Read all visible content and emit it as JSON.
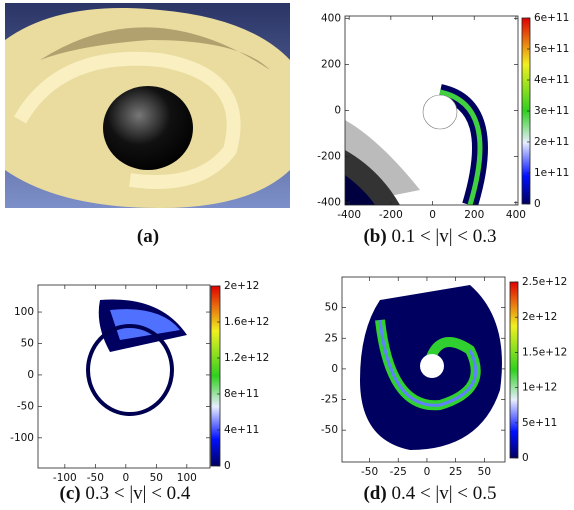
{
  "panels": [
    {
      "label": "(a)"
    },
    {
      "label": "(b)",
      "caption": "0.1 < |v| < 0.3",
      "xlim": [
        -420,
        410
      ],
      "ylim": [
        -410,
        410
      ],
      "xticks": [
        -400,
        -200,
        0,
        200,
        400
      ],
      "yticks": [
        400,
        200,
        0,
        -200,
        -400
      ],
      "clim": [
        0,
        600000000000
      ],
      "cticks": [
        0,
        {
          "value": 100000000000,
          "label": "1e+11"
        },
        {
          "value": 200000000000,
          "label": "2e+11"
        },
        {
          "value": 300000000000,
          "label": "3e+11"
        },
        {
          "value": 400000000000,
          "label": "4e+11"
        },
        {
          "value": 500000000000,
          "label": "5e+11"
        },
        {
          "value": 600000000000,
          "label": "6e+11"
        }
      ]
    },
    {
      "label": "(c)",
      "caption": "0.3 < |v| < 0.4",
      "xlim": [
        -144,
        138
      ],
      "ylim": [
        -148,
        143
      ],
      "xticks": [
        -100,
        -50,
        0,
        50,
        100
      ],
      "yticks": [
        100,
        50,
        0,
        -50,
        -100
      ],
      "clim": [
        0,
        2000000000000
      ],
      "cticks": [
        0,
        {
          "value": 400000000000,
          "label": "4e+11"
        },
        {
          "value": 800000000000,
          "label": "8e+11"
        },
        {
          "value": 1200000000000,
          "label": "1.2e+12"
        },
        {
          "value": 1600000000000,
          "label": "1.6e+12"
        },
        {
          "value": 2000000000000,
          "label": "2e+12"
        }
      ]
    },
    {
      "label": "(d)",
      "caption": "0.4 < |v| < 0.5",
      "xlim": [
        -74,
        68
      ],
      "ylim": [
        -76,
        75
      ],
      "xticks": [
        -50,
        -25,
        0,
        25,
        50
      ],
      "yticks": [
        50,
        25,
        0,
        -25,
        -50
      ],
      "clim": [
        0,
        2500000000000
      ],
      "cticks": [
        0,
        {
          "value": 500000000000,
          "label": "5e+11"
        },
        {
          "value": 1000000000000,
          "label": "1e+12"
        },
        {
          "value": 1500000000000,
          "label": "1.5e+12"
        },
        {
          "value": 2000000000000,
          "label": "2e+12"
        },
        {
          "value": 2500000000000,
          "label": "2.5e+12"
        }
      ]
    }
  ]
}
